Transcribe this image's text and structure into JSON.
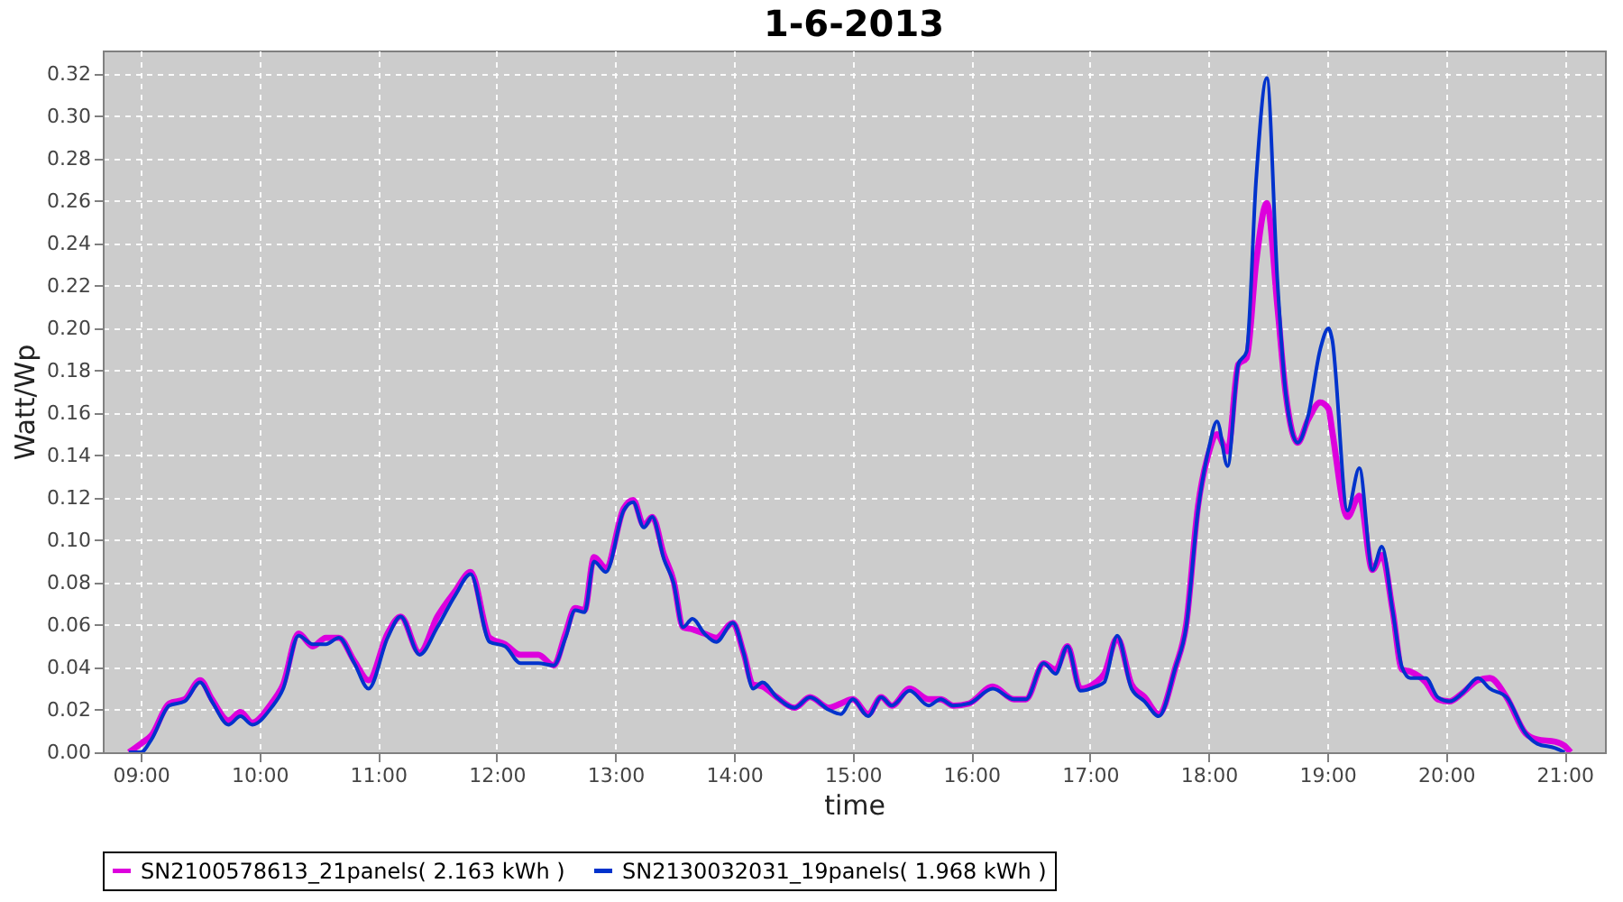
{
  "chart_data": {
    "type": "line",
    "title": "1-6-2013",
    "xlabel": "time",
    "ylabel": "Watt/Wp",
    "x": [
      8.9,
      9.0,
      9.09,
      9.24,
      9.37,
      9.5,
      9.6,
      9.74,
      9.84,
      9.94,
      10.1,
      10.2,
      10.33,
      10.45,
      10.56,
      10.67,
      10.8,
      10.92,
      11.08,
      11.19,
      11.35,
      11.5,
      11.65,
      11.78,
      11.94,
      12.07,
      12.2,
      12.35,
      12.48,
      12.58,
      12.66,
      12.74,
      12.82,
      12.92,
      13.07,
      13.15,
      13.24,
      13.31,
      13.41,
      13.49,
      13.57,
      13.65,
      13.75,
      13.85,
      13.99,
      14.08,
      14.16,
      14.24,
      14.36,
      14.51,
      14.64,
      14.8,
      14.9,
      15.0,
      15.13,
      15.24,
      15.33,
      15.48,
      15.64,
      15.74,
      15.85,
      15.98,
      16.18,
      16.36,
      16.46,
      16.61,
      16.71,
      16.81,
      16.92,
      17.05,
      17.12,
      17.23,
      17.35,
      17.46,
      17.58,
      17.72,
      17.81,
      17.91,
      18.0,
      18.07,
      18.16,
      18.25,
      18.32,
      18.4,
      18.49,
      18.58,
      18.65,
      18.75,
      18.84,
      18.94,
      19.01,
      19.04,
      19.17,
      19.27,
      19.38,
      19.46,
      19.55,
      19.63,
      19.7,
      19.83,
      19.93,
      20.03,
      20.14,
      20.27,
      20.37,
      20.51,
      20.67,
      20.77,
      20.92,
      21.0,
      21.05
    ],
    "series": [
      {
        "name": "SN2100578613_21panels( 2.163 kWh )",
        "color": "#dd00dd",
        "values": [
          0,
          0.004,
          0.008,
          0.023,
          0.025,
          0.034,
          0.025,
          0.015,
          0.019,
          0.014,
          0.023,
          0.032,
          0.056,
          0.05,
          0.054,
          0.054,
          0.043,
          0.034,
          0.056,
          0.064,
          0.047,
          0.064,
          0.076,
          0.085,
          0.054,
          0.051,
          0.046,
          0.046,
          0.041,
          0.056,
          0.068,
          0.067,
          0.092,
          0.087,
          0.115,
          0.119,
          0.107,
          0.111,
          0.093,
          0.081,
          0.059,
          0.058,
          0.056,
          0.054,
          0.061,
          0.047,
          0.032,
          0.031,
          0.026,
          0.021,
          0.026,
          0.021,
          0.023,
          0.025,
          0.018,
          0.026,
          0.022,
          0.03,
          0.025,
          0.025,
          0.022,
          0.023,
          0.031,
          0.025,
          0.025,
          0.042,
          0.039,
          0.05,
          0.03,
          0.033,
          0.037,
          0.054,
          0.032,
          0.026,
          0.018,
          0.04,
          0.06,
          0.116,
          0.141,
          0.15,
          0.142,
          0.183,
          0.186,
          0.231,
          0.259,
          0.21,
          0.169,
          0.146,
          0.157,
          0.165,
          0.162,
          0.152,
          0.111,
          0.121,
          0.086,
          0.093,
          0.067,
          0.039,
          0.038,
          0.033,
          0.025,
          0.024,
          0.028,
          0.034,
          0.035,
          0.026,
          0.009,
          0.006,
          0.005,
          0.003,
          0
        ]
      },
      {
        "name": "SN2130032031_19panels( 1.968 kWh )",
        "color": "#0033cc",
        "values": [
          0,
          0,
          0.006,
          0.022,
          0.024,
          0.033,
          0.024,
          0.013,
          0.017,
          0.013,
          0.021,
          0.03,
          0.055,
          0.051,
          0.051,
          0.054,
          0.042,
          0.03,
          0.054,
          0.064,
          0.046,
          0.059,
          0.074,
          0.084,
          0.052,
          0.05,
          0.042,
          0.042,
          0.041,
          0.054,
          0.067,
          0.066,
          0.09,
          0.085,
          0.114,
          0.118,
          0.106,
          0.111,
          0.091,
          0.08,
          0.059,
          0.063,
          0.056,
          0.052,
          0.061,
          0.047,
          0.03,
          0.033,
          0.026,
          0.021,
          0.026,
          0.02,
          0.018,
          0.025,
          0.017,
          0.026,
          0.022,
          0.029,
          0.022,
          0.025,
          0.022,
          0.023,
          0.03,
          0.025,
          0.025,
          0.042,
          0.037,
          0.05,
          0.029,
          0.031,
          0.033,
          0.055,
          0.03,
          0.024,
          0.017,
          0.04,
          0.059,
          0.114,
          0.143,
          0.156,
          0.135,
          0.183,
          0.189,
          0.27,
          0.318,
          0.222,
          0.169,
          0.146,
          0.159,
          0.19,
          0.2,
          0.195,
          0.114,
          0.134,
          0.086,
          0.097,
          0.067,
          0.04,
          0.035,
          0.035,
          0.026,
          0.024,
          0.028,
          0.035,
          0.03,
          0.026,
          0.009,
          0.004,
          0.002,
          0,
          null
        ]
      }
    ],
    "xlim": [
      8.68,
      21.34
    ],
    "xticks": [
      {
        "value": 9,
        "label": "09:00"
      },
      {
        "value": 10,
        "label": "10:00"
      },
      {
        "value": 11,
        "label": "11:00"
      },
      {
        "value": 12,
        "label": "12:00"
      },
      {
        "value": 13,
        "label": "13:00"
      },
      {
        "value": 14,
        "label": "14:00"
      },
      {
        "value": 15,
        "label": "15:00"
      },
      {
        "value": 16,
        "label": "16:00"
      },
      {
        "value": 17,
        "label": "17:00"
      },
      {
        "value": 18,
        "label": "18:00"
      },
      {
        "value": 19,
        "label": "19:00"
      },
      {
        "value": 20,
        "label": "20:00"
      },
      {
        "value": 21,
        "label": "21:00"
      }
    ],
    "ylim": [
      0,
      0.331
    ],
    "yticks": [
      {
        "value": 0,
        "label": "0.00"
      },
      {
        "value": 0.02,
        "label": "0.02"
      },
      {
        "value": 0.04,
        "label": "0.04"
      },
      {
        "value": 0.06,
        "label": "0.06"
      },
      {
        "value": 0.08,
        "label": "0.08"
      },
      {
        "value": 0.1,
        "label": "0.10"
      },
      {
        "value": 0.12,
        "label": "0.12"
      },
      {
        "value": 0.14,
        "label": "0.14"
      },
      {
        "value": 0.16,
        "label": "0.16"
      },
      {
        "value": 0.18,
        "label": "0.18"
      },
      {
        "value": 0.2,
        "label": "0.20"
      },
      {
        "value": 0.22,
        "label": "0.22"
      },
      {
        "value": 0.24,
        "label": "0.24"
      },
      {
        "value": 0.26,
        "label": "0.26"
      },
      {
        "value": 0.28,
        "label": "0.28"
      },
      {
        "value": 0.3,
        "label": "0.30"
      },
      {
        "value": 0.32,
        "label": "0.32"
      }
    ],
    "grid": true,
    "legend": "bottom"
  }
}
